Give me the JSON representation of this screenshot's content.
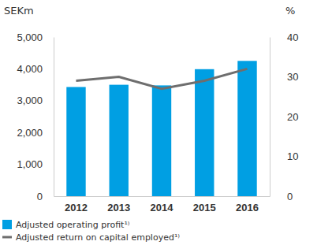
{
  "chart_data": {
    "type": "bar",
    "ylabel": "SEKm",
    "y2label": "%",
    "categories": [
      "2012",
      "2013",
      "2014",
      "2015",
      "2016"
    ],
    "series": [
      {
        "name": "Adjusted operating profit¹⁾",
        "type": "bar",
        "color": "#009fe3",
        "values": [
          3430,
          3500,
          3480,
          3990,
          4250
        ]
      },
      {
        "name": "Adjusted return on capital employed¹⁾",
        "type": "line",
        "color": "#6e6e6e",
        "axis": "y2",
        "values": [
          29,
          30,
          27,
          29,
          32
        ]
      }
    ],
    "ylim": [
      0,
      5000
    ],
    "yticks": [
      0,
      {
        "value": 1000,
        "label": "1,000"
      },
      {
        "value": 2000,
        "label": "2,000"
      },
      {
        "value": 3000,
        "label": "3,000"
      },
      {
        "value": 4000,
        "label": "4,000"
      },
      {
        "value": 5000,
        "label": "5,000"
      }
    ],
    "y2lim": [
      0,
      40
    ],
    "y2ticks": [
      0,
      10,
      20,
      30,
      40
    ],
    "grid": false,
    "legend": "bottom"
  }
}
